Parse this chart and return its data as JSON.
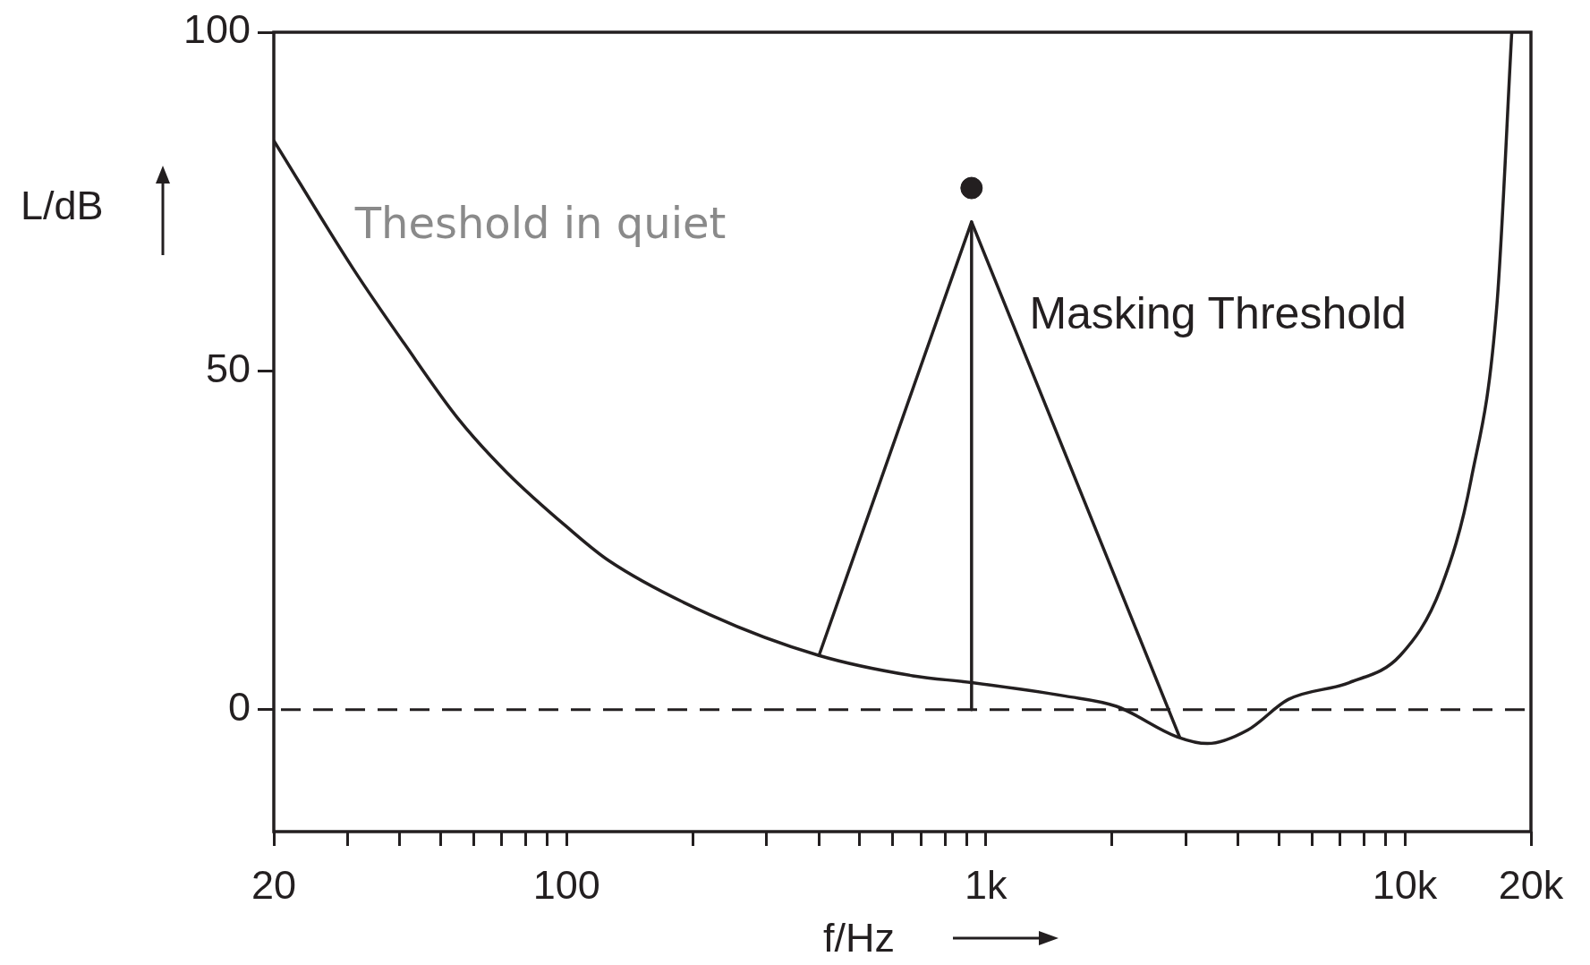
{
  "chart_data": {
    "type": "line",
    "xlabel": "f/Hz",
    "ylabel": "L/dB",
    "log": "x",
    "xlim": [
      20,
      20000
    ],
    "ylim": [
      -18,
      100
    ],
    "xticks": [
      {
        "value": 20,
        "label": "20"
      },
      {
        "value": 30,
        "label": null
      },
      {
        "value": 40,
        "label": null
      },
      {
        "value": 50,
        "label": null
      },
      {
        "value": 60,
        "label": null
      },
      {
        "value": 70,
        "label": null
      },
      {
        "value": 80,
        "label": null
      },
      {
        "value": 90,
        "label": null
      },
      {
        "value": 100,
        "label": "100"
      },
      {
        "value": 200,
        "label": null
      },
      {
        "value": 300,
        "label": null
      },
      {
        "value": 400,
        "label": null
      },
      {
        "value": 500,
        "label": null
      },
      {
        "value": 600,
        "label": null
      },
      {
        "value": 700,
        "label": null
      },
      {
        "value": 800,
        "label": null
      },
      {
        "value": 900,
        "label": null
      },
      {
        "value": 1000,
        "label": "1k"
      },
      {
        "value": 2000,
        "label": null
      },
      {
        "value": 3000,
        "label": null
      },
      {
        "value": 4000,
        "label": null
      },
      {
        "value": 5000,
        "label": null
      },
      {
        "value": 6000,
        "label": null
      },
      {
        "value": 7000,
        "label": null
      },
      {
        "value": 8000,
        "label": null
      },
      {
        "value": 9000,
        "label": null
      },
      {
        "value": 10000,
        "label": "10k"
      },
      {
        "value": 20000,
        "label": "20k"
      }
    ],
    "yticks": [
      0,
      50,
      100
    ],
    "grid": false,
    "marker": "none",
    "line_style": "solid",
    "ref_lines": [
      {
        "axis": "y",
        "value": 0,
        "line_style": "dashed",
        "color": "#231f20"
      }
    ],
    "series": [
      {
        "name": "Theshold in quiet",
        "color": "#231f20",
        "x": [
          20,
          31,
          41,
          55,
          72,
          100,
          126,
          220,
          400,
          670,
          925,
          1550,
          2050,
          2860,
          3380,
          4220,
          5270,
          7370,
          9750,
          12200,
          14400,
          16600,
          18000
        ],
        "values": [
          84,
          65,
          54,
          43,
          35,
          27,
          22,
          14,
          8,
          5,
          4,
          2,
          0.5,
          -4,
          -5,
          -3,
          1.5,
          4,
          8,
          18,
          34,
          60,
          100
        ]
      },
      {
        "name": "Masking Threshold",
        "color": "#231f20",
        "x": [
          400,
          925,
          2900
        ],
        "values": [
          8,
          72,
          -4
        ]
      },
      {
        "color": "#231f20",
        "x": [
          925,
          925
        ],
        "values": [
          0,
          72
        ]
      },
      {
        "type": "scatter",
        "marker": "circle",
        "color": "#231f20",
        "x": [
          925
        ],
        "values": [
          77
        ]
      }
    ]
  }
}
